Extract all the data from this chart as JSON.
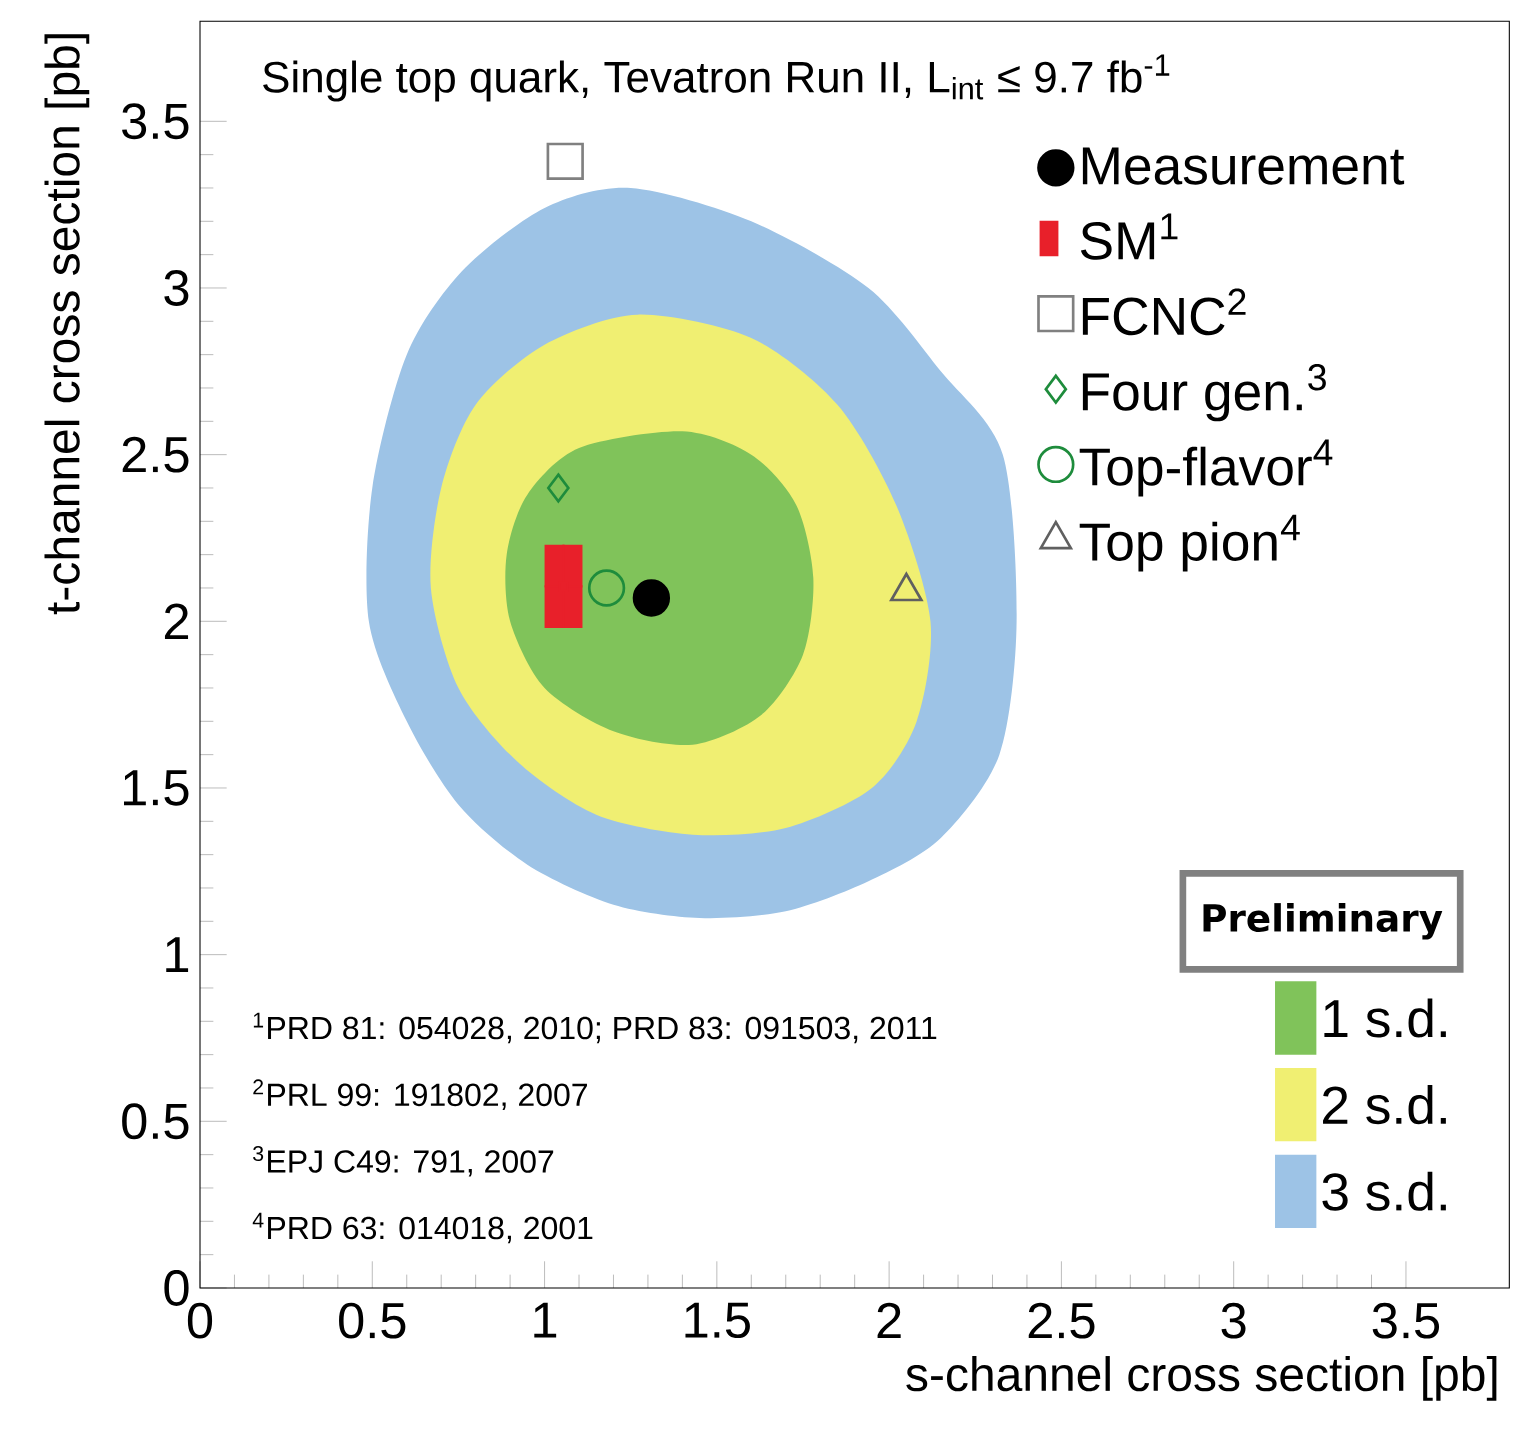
{
  "chart_data": {
    "type": "scatter",
    "title": "Single top quark, Tevatron Run II, L$_{int}$ ≤ 9.7 fb$^{-1}$",
    "xlabel": "s-channel cross section [pb]",
    "ylabel": "t-channel cross section [pb]",
    "xlim": [
      0,
      3.8
    ],
    "ylim": [
      0,
      3.8
    ],
    "xticks": [
      0,
      0.5,
      1,
      1.5,
      2,
      2.5,
      3,
      3.5
    ],
    "yticks": [
      0,
      0.5,
      1,
      1.5,
      2,
      2.5,
      3,
      3.5
    ],
    "legend": "right",
    "series": [
      {
        "name": "3 s.d.",
        "type": "area",
        "color": "#9dc3e6",
        "x": [
          1.25,
          1.6,
          1.94,
          2.15,
          2.33,
          2.37,
          2.32,
          2.15,
          1.94,
          1.7,
          1.45,
          1.2,
          0.95,
          0.75,
          0.6,
          0.49,
          0.5,
          0.6,
          0.76,
          1.0
        ],
        "values": [
          3.3,
          3.2,
          3.0,
          2.75,
          2.5,
          2.0,
          1.6,
          1.35,
          1.22,
          1.13,
          1.11,
          1.15,
          1.27,
          1.45,
          1.7,
          2.0,
          2.4,
          2.8,
          3.05,
          3.24
        ]
      },
      {
        "name": "2 s.d.",
        "type": "area",
        "color": "#f0ef72",
        "x": [
          1.27,
          1.6,
          1.85,
          2.02,
          2.12,
          2.08,
          1.95,
          1.7,
          1.43,
          1.15,
          0.92,
          0.75,
          0.67,
          0.7,
          0.8,
          1.0
        ],
        "values": [
          2.92,
          2.85,
          2.65,
          2.35,
          2.0,
          1.7,
          1.5,
          1.38,
          1.36,
          1.42,
          1.58,
          1.8,
          2.1,
          2.4,
          2.65,
          2.83
        ]
      },
      {
        "name": "1 s.d.",
        "type": "area",
        "color": "#80c35a",
        "x": [
          1.4,
          1.6,
          1.73,
          1.78,
          1.75,
          1.63,
          1.43,
          1.2,
          1.0,
          0.9,
          0.89,
          0.95,
          1.1
        ],
        "values": [
          2.57,
          2.5,
          2.35,
          2.13,
          1.9,
          1.72,
          1.63,
          1.67,
          1.8,
          2.0,
          2.2,
          2.38,
          2.52
        ]
      },
      {
        "name": "Measurement",
        "marker": "circle",
        "color": "#000000",
        "x": [
          1.31
        ],
        "values": [
          2.07
        ]
      },
      {
        "name": "SM$^{1}$",
        "marker": "square",
        "color": "#e8202a",
        "x": [
          1.055
        ],
        "values": [
          2.105
        ],
        "errors": [
          0.125
        ],
        "xerrors": [
          0.055
        ]
      },
      {
        "name": "FCNC$^{2}$",
        "marker": "square",
        "color": "#808080",
        "x": [
          1.06
        ],
        "values": [
          3.38
        ]
      },
      {
        "name": "Four gen.$^{3}$",
        "marker": "diamond",
        "color": "#1e8c3c",
        "x": [
          1.04
        ],
        "values": [
          2.4
        ]
      },
      {
        "name": "Top-flavor$^{4}$",
        "marker": "circle",
        "color": "#1e8c3c",
        "x": [
          1.18
        ],
        "values": [
          2.1
        ]
      },
      {
        "name": "Top pion$^{4}$",
        "marker": "triangle",
        "color": "#606060",
        "x": [
          2.05
        ],
        "values": [
          2.09
        ]
      }
    ],
    "annotations": [
      "Preliminary",
      "$^{1}$PRD 81: 054028, 2010; PRD 83: 091503, 2011",
      "$^{2}$PRL 99: 191802, 2007",
      "$^{3}$EPJ C49: 791, 2007",
      "$^{4}$PRD 63: 014018, 2001"
    ]
  }
}
